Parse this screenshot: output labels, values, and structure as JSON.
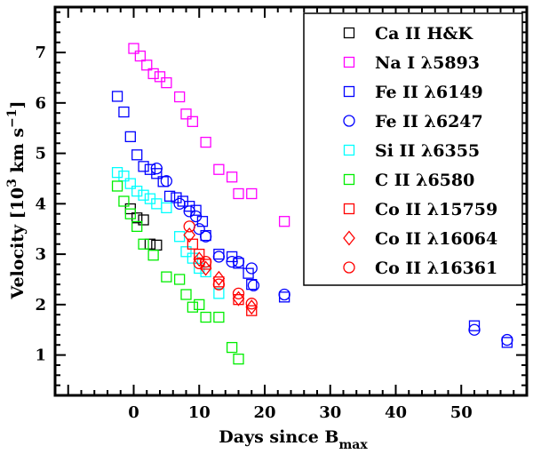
{
  "chart_data": {
    "type": "scatter",
    "title": "",
    "xlabel": "Days since B",
    "xlabel_sub": "max",
    "ylabel": "Velocity [10",
    "ylabel_sup": "3",
    "ylabel_unit": " km s",
    "ylabel_unit_sup": "−1",
    "ylabel_close": "]",
    "xlim": [
      -12,
      60
    ],
    "ylim": [
      0.2,
      7.9
    ],
    "xticks": [
      0,
      10,
      20,
      30,
      40,
      50
    ],
    "xtick_labels": [
      "0",
      "10",
      "20",
      "30",
      "40",
      "50"
    ],
    "yticks": [
      1,
      2,
      3,
      4,
      5,
      6,
      7
    ],
    "ytick_labels": [
      "1",
      "2",
      "3",
      "4",
      "5",
      "6",
      "7"
    ],
    "legend_position": "top-right",
    "series": [
      {
        "name": "Ca II H&K",
        "marker": "square",
        "color": "#000000",
        "x": [
          -0.5,
          0.5,
          1.5,
          2.5,
          3.5
        ],
        "y": [
          3.9,
          3.72,
          3.68,
          3.2,
          3.18
        ]
      },
      {
        "name": "Na I λ5893",
        "marker": "square",
        "color": "#ff00ff",
        "x": [
          0,
          1,
          2,
          3,
          4,
          5,
          7,
          8,
          9,
          11,
          13,
          15,
          16,
          18,
          23
        ],
        "y": [
          7.08,
          6.93,
          6.75,
          6.58,
          6.52,
          6.4,
          6.12,
          5.78,
          5.63,
          5.22,
          4.68,
          4.53,
          4.2,
          4.2,
          3.65
        ]
      },
      {
        "name": "Fe II λ6149",
        "marker": "square",
        "color": "#0000ff",
        "x": [
          -2.5,
          -1.5,
          -0.5,
          0.5,
          1.5,
          2.5,
          3.5,
          4.5,
          5.5,
          6.5,
          7.5,
          8.5,
          9.5,
          10.5,
          11,
          13,
          15,
          16,
          17.5,
          18,
          23,
          52,
          57
        ],
        "y": [
          6.13,
          5.82,
          5.33,
          4.97,
          4.74,
          4.68,
          4.6,
          4.44,
          4.15,
          4.12,
          4.05,
          3.95,
          3.87,
          3.65,
          3.37,
          3.0,
          2.95,
          2.82,
          2.62,
          2.4,
          2.15,
          1.58,
          1.25
        ]
      },
      {
        "name": "Fe II λ6247",
        "marker": "circle",
        "color": "#0000ff",
        "x": [
          3.5,
          5,
          7,
          8.5,
          9.5,
          10,
          11,
          13,
          15,
          16,
          18,
          18.3,
          23,
          52,
          57
        ],
        "y": [
          4.7,
          4.45,
          4.0,
          3.85,
          3.75,
          3.5,
          3.35,
          2.95,
          2.85,
          2.85,
          2.72,
          2.38,
          2.2,
          1.5,
          1.3
        ]
      },
      {
        "name": "Si II λ6355",
        "marker": "square",
        "color": "#00ffff",
        "x": [
          -2.5,
          -1.5,
          -0.5,
          0.5,
          1.5,
          2.5,
          3.5,
          5,
          7,
          8,
          9,
          10,
          11,
          13
        ],
        "y": [
          4.62,
          4.55,
          4.4,
          4.25,
          4.17,
          4.1,
          4.0,
          3.92,
          3.35,
          3.05,
          2.92,
          2.72,
          2.65,
          2.22
        ]
      },
      {
        "name": "C II λ6580",
        "marker": "square",
        "color": "#00ee00",
        "x": [
          -2.5,
          -1.5,
          -0.5,
          0.5,
          1.5,
          3,
          5,
          7,
          8,
          9,
          10,
          11,
          13,
          15,
          16
        ],
        "y": [
          4.35,
          4.05,
          3.8,
          3.55,
          3.2,
          2.98,
          2.55,
          2.5,
          2.2,
          1.95,
          2.0,
          1.75,
          1.75,
          1.15,
          0.92
        ]
      },
      {
        "name": "Co II λ15759",
        "marker": "square",
        "color": "#ff0000",
        "x": [
          9,
          10,
          11,
          13,
          16,
          18
        ],
        "y": [
          3.2,
          3.0,
          2.8,
          2.45,
          2.1,
          1.88
        ]
      },
      {
        "name": "Co II λ16064",
        "marker": "diamond",
        "color": "#ff0000",
        "x": [
          8.5,
          10,
          11,
          13,
          16,
          18
        ],
        "y": [
          3.38,
          2.9,
          2.72,
          2.52,
          2.12,
          1.95
        ]
      },
      {
        "name": "Co II λ16361",
        "marker": "circle",
        "color": "#ff0000",
        "x": [
          8.5,
          10,
          11,
          13,
          16,
          18
        ],
        "y": [
          3.55,
          2.82,
          2.85,
          2.4,
          2.22,
          2.02
        ]
      }
    ]
  }
}
